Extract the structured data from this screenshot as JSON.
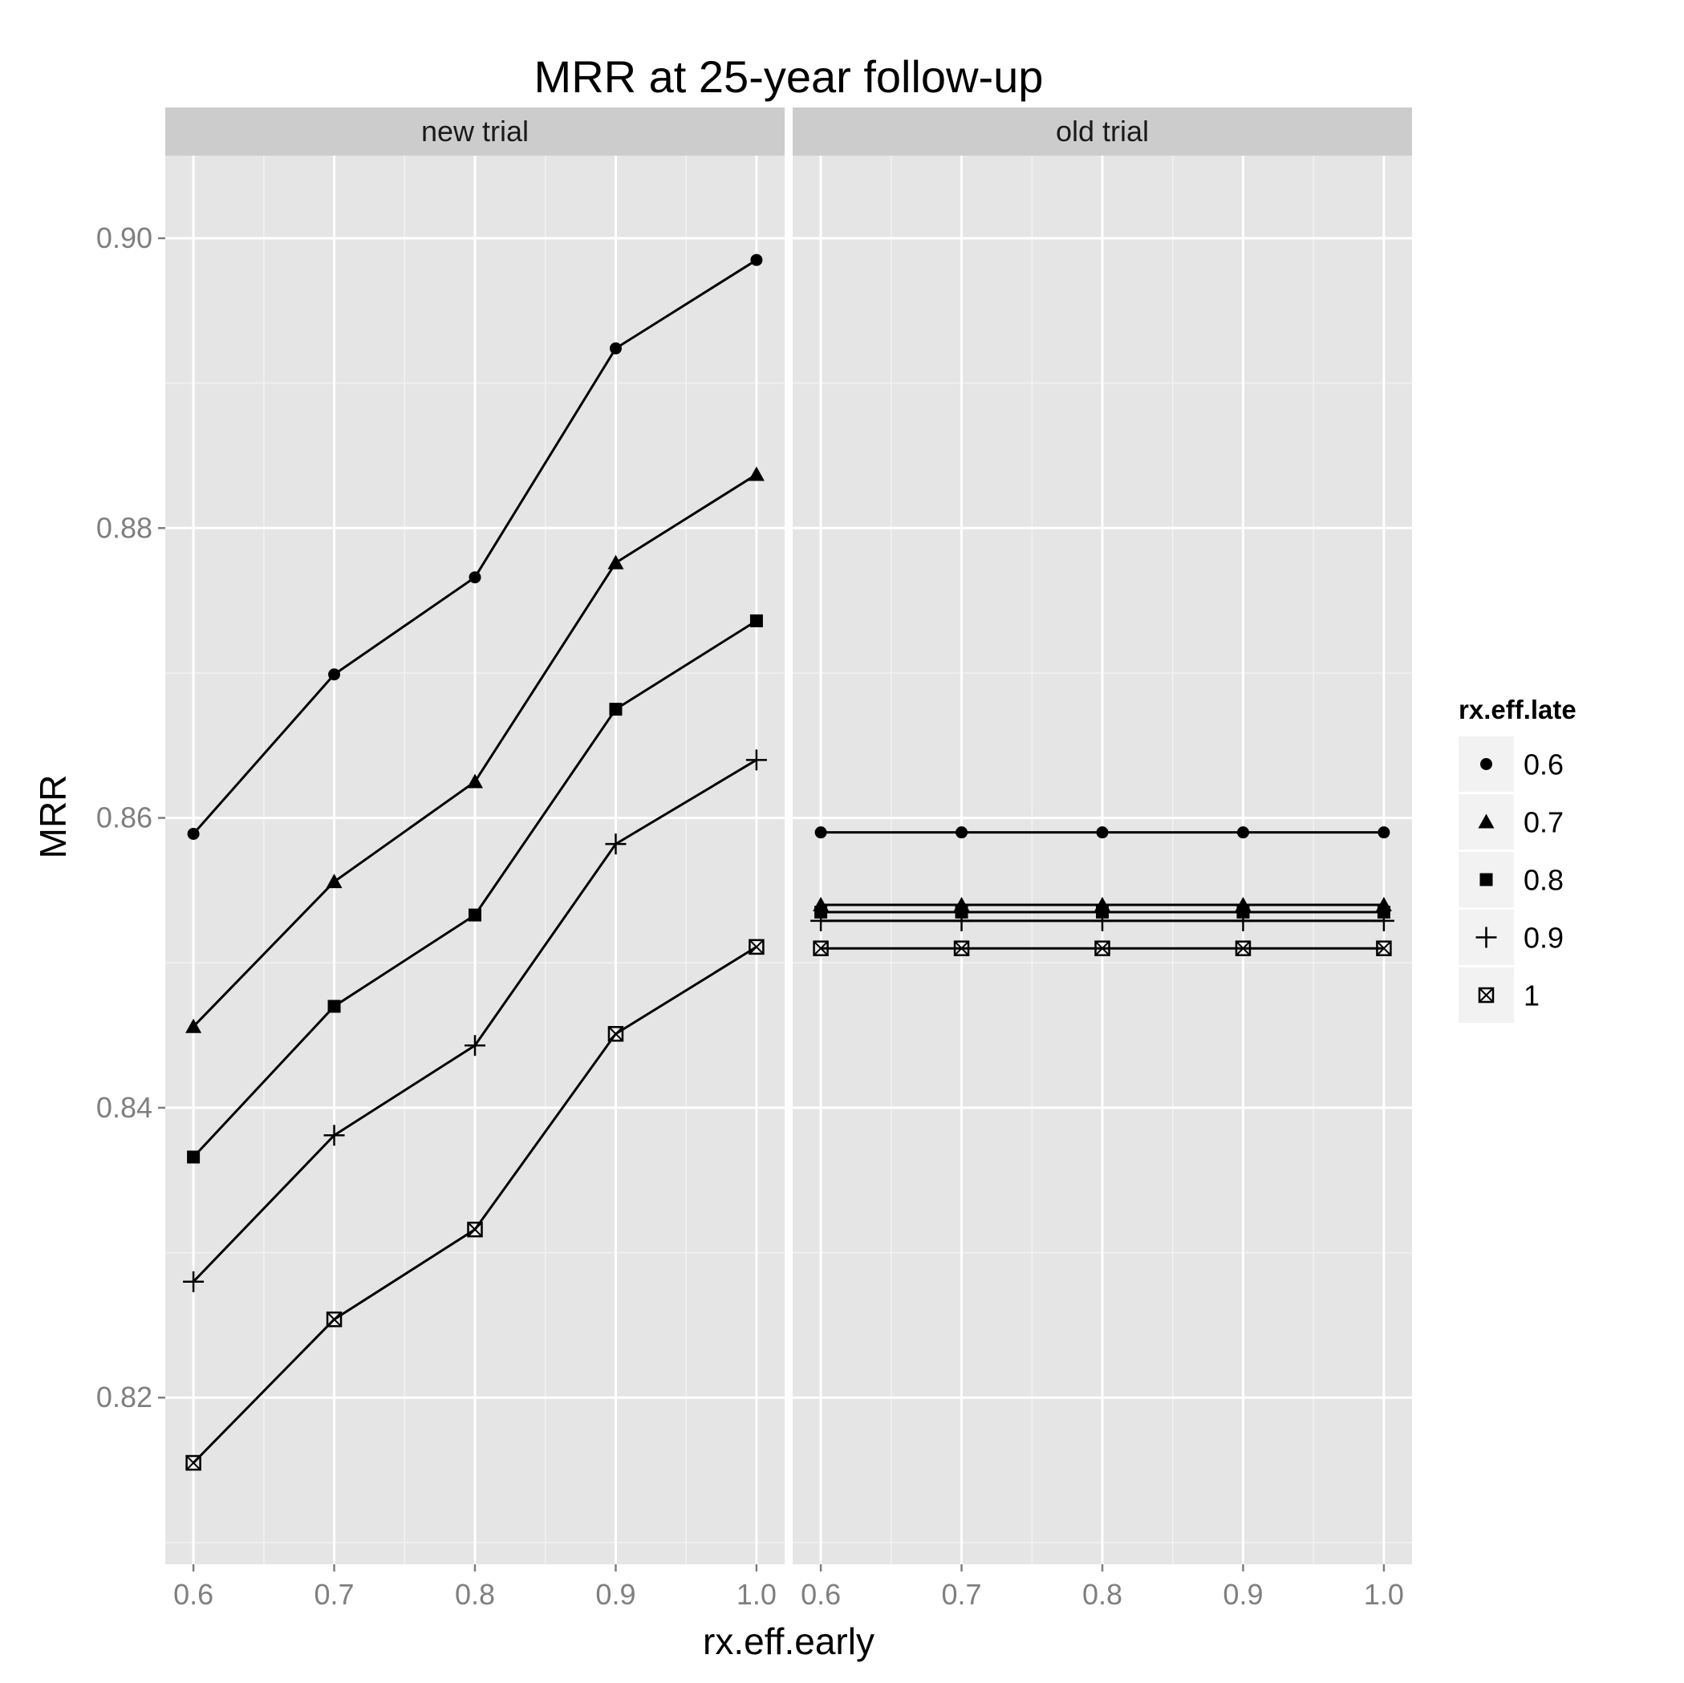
{
  "chart_data": {
    "type": "line",
    "title": "MRR at 25-year follow-up",
    "xlabel": "rx.eff.early",
    "ylabel": "MRR",
    "x": [
      0.6,
      0.7,
      0.8,
      0.9,
      1.0
    ],
    "x_tick_labels": [
      "0.6",
      "0.7",
      "0.8",
      "0.9",
      "1.0"
    ],
    "y_ticks": [
      0.82,
      0.84,
      0.86,
      0.88,
      0.9
    ],
    "y_tick_labels": [
      "0.82",
      "0.84",
      "0.86",
      "0.88",
      "0.90"
    ],
    "xlim": [
      0.58,
      1.02
    ],
    "ylim": [
      0.8085,
      0.9057
    ],
    "grid": true,
    "legend": {
      "title": "rx.eff.late",
      "position": "right",
      "entries": [
        {
          "label": "0.6",
          "shape": "filled-circle"
        },
        {
          "label": "0.7",
          "shape": "filled-triangle"
        },
        {
          "label": "0.8",
          "shape": "filled-square"
        },
        {
          "label": "0.9",
          "shape": "plus"
        },
        {
          "label": "1",
          "shape": "square-with-x"
        }
      ]
    },
    "panels": [
      {
        "label": "new trial",
        "series": [
          {
            "name": "0.6",
            "values": [
              0.8589,
              0.8699,
              0.8766,
              0.8924,
              0.8985
            ]
          },
          {
            "name": "0.7",
            "values": [
              0.8456,
              0.8556,
              0.8625,
              0.8776,
              0.8837
            ]
          },
          {
            "name": "0.8",
            "values": [
              0.8366,
              0.847,
              0.8533,
              0.8675,
              0.8736
            ]
          },
          {
            "name": "0.9",
            "values": [
              0.828,
              0.8381,
              0.8443,
              0.8582,
              0.864
            ]
          },
          {
            "name": "1",
            "values": [
              0.8155,
              0.8254,
              0.8316,
              0.8451,
              0.8511
            ]
          }
        ]
      },
      {
        "label": "old trial",
        "series": [
          {
            "name": "0.6",
            "values": [
              0.859,
              0.859,
              0.859,
              0.859,
              0.859
            ]
          },
          {
            "name": "0.7",
            "values": [
              0.854,
              0.854,
              0.854,
              0.854,
              0.854
            ]
          },
          {
            "name": "0.8",
            "values": [
              0.8535,
              0.8535,
              0.8535,
              0.8535,
              0.8535
            ]
          },
          {
            "name": "0.9",
            "values": [
              0.8529,
              0.8529,
              0.8529,
              0.8529,
              0.8529
            ]
          },
          {
            "name": "1",
            "values": [
              0.851,
              0.851,
              0.851,
              0.851,
              0.851
            ]
          }
        ]
      }
    ]
  }
}
